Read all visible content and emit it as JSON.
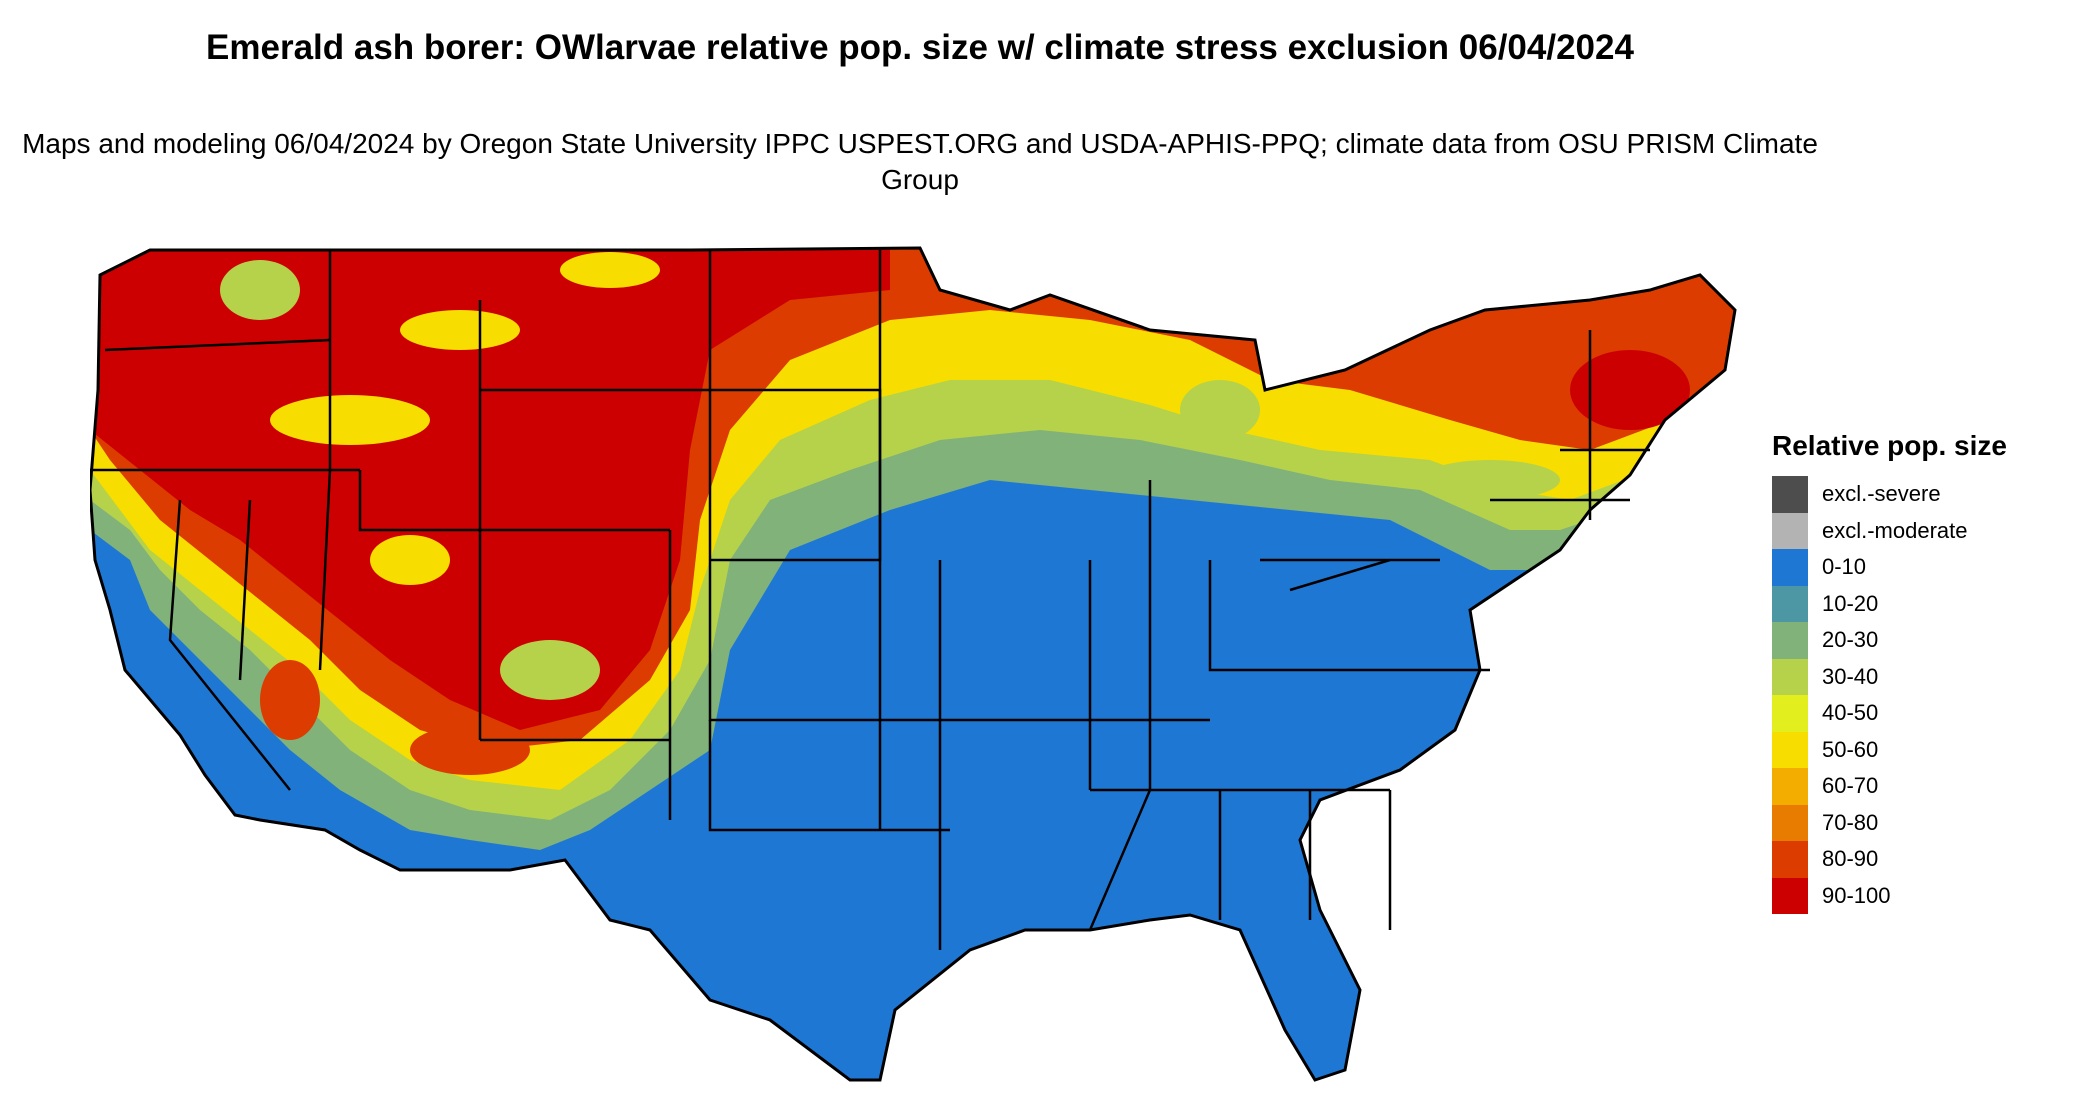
{
  "map": {
    "title": "Emerald ash borer: OWlarvae relative pop. size w/ climate stress exclusion 06/04/2024",
    "subtitle": "Maps and modeling 06/04/2024 by Oregon State University IPPC USPEST.ORG and USDA-APHIS-PPQ; climate data from OSU PRISM Climate Group",
    "legend": {
      "title": "Relative pop. size",
      "items": [
        {
          "label": "excl.-severe",
          "color": "#4d4d4d"
        },
        {
          "label": "excl.-moderate",
          "color": "#b3b3b3"
        },
        {
          "label": "0-10",
          "color": "#1f77d4"
        },
        {
          "label": "10-20",
          "color": "#4d97a5"
        },
        {
          "label": "20-30",
          "color": "#80b27a"
        },
        {
          "label": "30-40",
          "color": "#b5d24a"
        },
        {
          "label": "40-50",
          "color": "#e2ee1e"
        },
        {
          "label": "50-60",
          "color": "#f7dd00"
        },
        {
          "label": "60-70",
          "color": "#f2ad00"
        },
        {
          "label": "70-80",
          "color": "#e87c00"
        },
        {
          "label": "80-90",
          "color": "#dc3c00"
        },
        {
          "label": "90-100",
          "color": "#cc0000"
        }
      ]
    }
  }
}
